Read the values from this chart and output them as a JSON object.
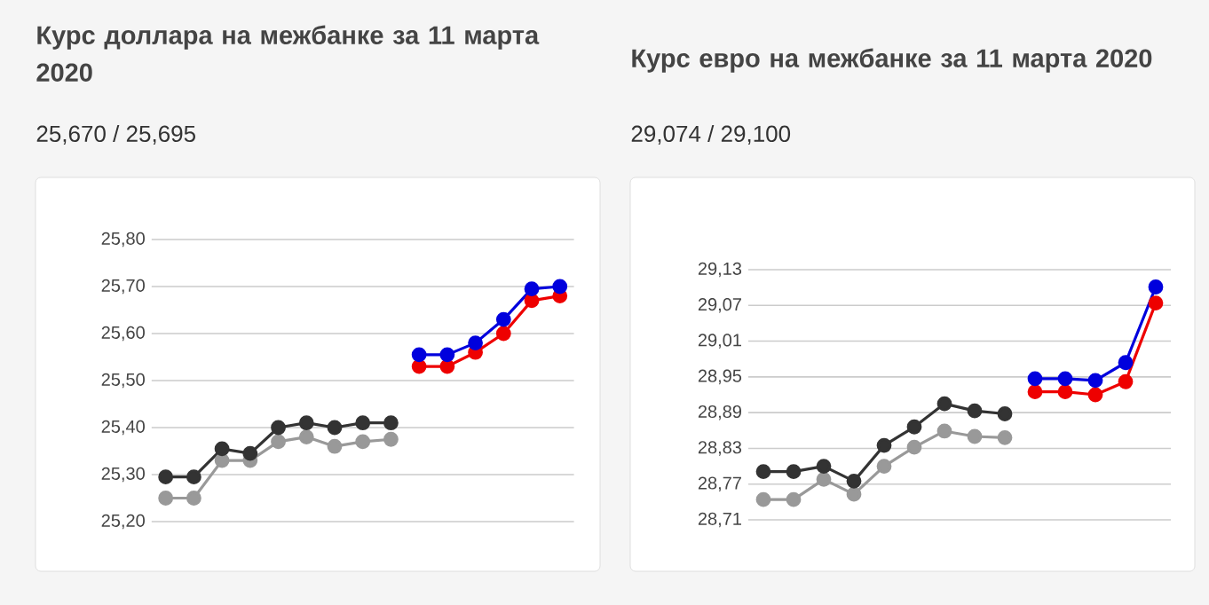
{
  "chart_data": [
    {
      "type": "line",
      "title": "Курс доллара на межбанке за 11 марта 2020",
      "subtitle": "25,670 / 25,695",
      "categories": [
        null,
        null,
        null,
        null,
        null,
        null,
        null,
        null,
        null,
        null,
        null,
        null,
        null,
        null,
        null
      ],
      "series": [
        {
          "color": "#999999",
          "values": [
            25.25,
            25.25,
            25.33,
            25.33,
            25.37,
            25.38,
            25.36,
            25.37,
            25.375,
            null,
            null,
            null,
            null,
            null,
            null
          ]
        },
        {
          "color": "#333333",
          "values": [
            25.295,
            25.295,
            25.355,
            25.345,
            25.4,
            25.41,
            25.4,
            25.41,
            25.41,
            null,
            null,
            null,
            null,
            null,
            null
          ]
        },
        {
          "color": "#ee0000",
          "values": [
            null,
            null,
            null,
            null,
            null,
            null,
            null,
            null,
            null,
            25.53,
            25.53,
            25.56,
            25.6,
            25.67,
            25.68
          ]
        },
        {
          "color": "#0000dd",
          "values": [
            null,
            null,
            null,
            null,
            null,
            null,
            null,
            null,
            null,
            25.555,
            25.555,
            25.58,
            25.63,
            25.695,
            25.7
          ]
        }
      ],
      "ylim": [
        25.2,
        25.8
      ],
      "yticks": [
        {
          "value": 25.2,
          "label": "25,20"
        },
        {
          "value": 25.3,
          "label": "25,30"
        },
        {
          "value": 25.4,
          "label": "25,40"
        },
        {
          "value": 25.5,
          "label": "25,50"
        },
        {
          "value": 25.6,
          "label": "25,60"
        },
        {
          "value": 25.7,
          "label": "25,70"
        },
        {
          "value": 25.8,
          "label": "25,80"
        }
      ],
      "grid": "y",
      "marker": "circle",
      "line_style": "solid",
      "tick_labels": "y"
    },
    {
      "type": "line",
      "title": "Курс евро на межбанке за 11 марта 2020",
      "subtitle": "29,074 / 29,100",
      "categories": [
        null,
        null,
        null,
        null,
        null,
        null,
        null,
        null,
        null,
        null,
        null,
        null,
        null,
        null
      ],
      "series": [
        {
          "color": "#999999",
          "values": [
            28.744,
            28.744,
            28.778,
            28.753,
            28.8,
            28.832,
            28.859,
            28.85,
            28.848,
            null,
            null,
            null,
            null,
            null
          ]
        },
        {
          "color": "#333333",
          "values": [
            28.791,
            28.791,
            28.8,
            28.775,
            28.835,
            28.866,
            28.905,
            28.893,
            28.888,
            null,
            null,
            null,
            null,
            null
          ]
        },
        {
          "color": "#ee0000",
          "values": [
            null,
            null,
            null,
            null,
            null,
            null,
            null,
            null,
            null,
            28.925,
            28.925,
            28.92,
            28.942,
            29.074
          ]
        },
        {
          "color": "#0000dd",
          "values": [
            null,
            null,
            null,
            null,
            null,
            null,
            null,
            null,
            null,
            28.947,
            28.947,
            28.944,
            28.974,
            29.101
          ]
        }
      ],
      "ylim": [
        28.71,
        29.13
      ],
      "yticks": [
        {
          "value": 28.71,
          "label": "28,71"
        },
        {
          "value": 28.77,
          "label": "28,77"
        },
        {
          "value": 28.83,
          "label": "28,83"
        },
        {
          "value": 28.89,
          "label": "28,89"
        },
        {
          "value": 28.95,
          "label": "28,95"
        },
        {
          "value": 29.01,
          "label": "29,01"
        },
        {
          "value": 29.07,
          "label": "29,07"
        },
        {
          "value": 29.13,
          "label": "29,13"
        }
      ],
      "grid": "y",
      "marker": "circle",
      "line_style": "solid",
      "tick_labels": "y"
    }
  ]
}
